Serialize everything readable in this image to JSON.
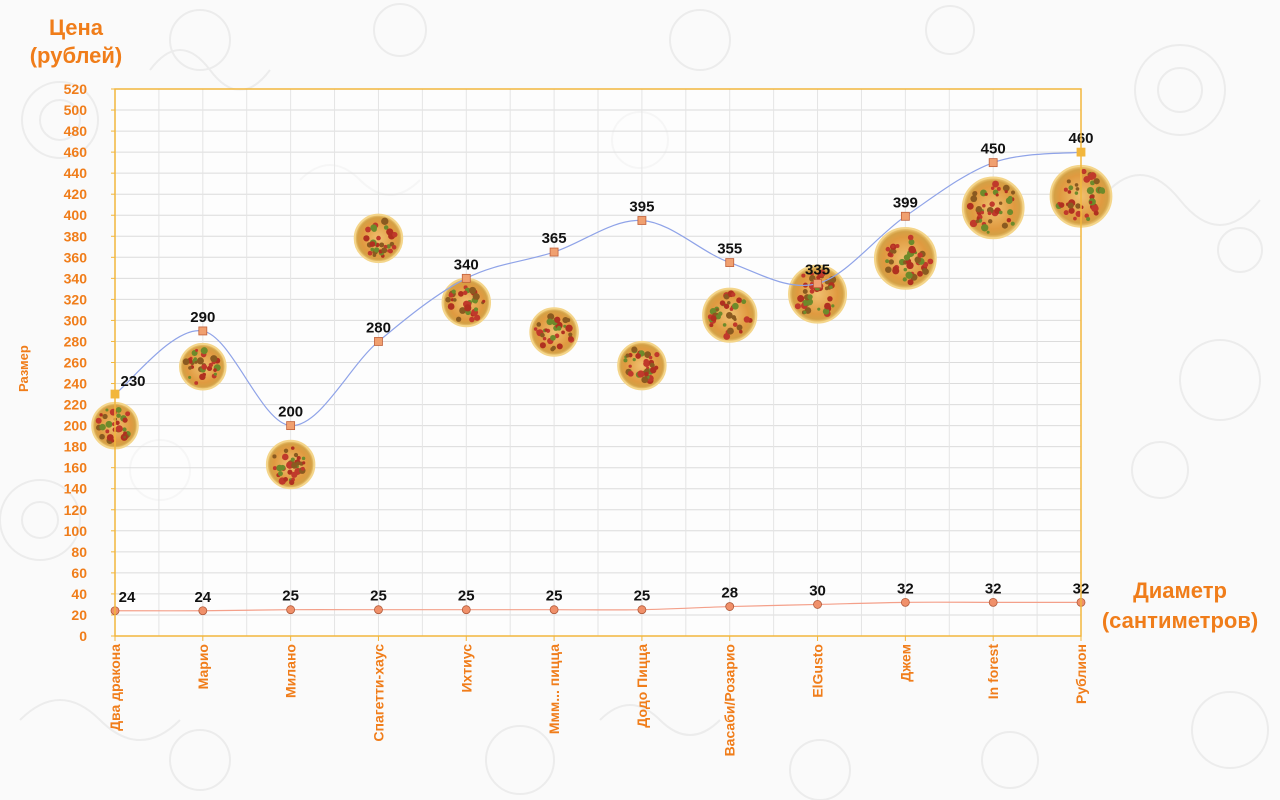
{
  "chart_data": {
    "type": "line",
    "ylabel": "Цена\n(рублей)",
    "xlabel": "Диаметр\n(сантиметров)",
    "size_axis_label": "Размер",
    "ylim": [
      0,
      520
    ],
    "y_ticks": [
      0,
      20,
      40,
      60,
      80,
      100,
      120,
      140,
      160,
      180,
      200,
      220,
      240,
      260,
      280,
      300,
      320,
      340,
      360,
      380,
      400,
      420,
      440,
      460,
      480,
      500,
      520
    ],
    "grid": true,
    "categories": [
      "Два дракона",
      "Марио",
      "Милано",
      "Спагетти-хаус",
      "Ихтиус",
      "Ммм... пицца",
      "Додо Пицца",
      "Васаби/Розарио",
      "ElGusto",
      "Джем",
      "In forest",
      "Рублион"
    ],
    "series": [
      {
        "values": [
          230,
          290,
          200,
          280,
          340,
          365,
          395,
          355,
          335,
          399,
          450,
          460
        ],
        "color": "#8fa3e8",
        "marker_color": "#f0a070"
      },
      {
        "values": [
          24,
          24,
          25,
          25,
          25,
          25,
          25,
          28,
          30,
          32,
          32,
          32
        ],
        "color": "#f4a08a",
        "marker_color": "#f0906a"
      }
    ],
    "pizza_icon_centers": [
      200,
      256,
      163,
      378,
      317,
      289,
      257,
      305,
      325,
      359,
      407,
      418
    ],
    "pizza_icon_sizes": [
      24,
      24,
      25,
      25,
      25,
      25,
      25,
      28,
      30,
      32,
      32,
      32
    ]
  },
  "colors": {
    "accent": "#f07d1a",
    "frame": "#f2b63c",
    "grid": "#dcdcdc"
  }
}
